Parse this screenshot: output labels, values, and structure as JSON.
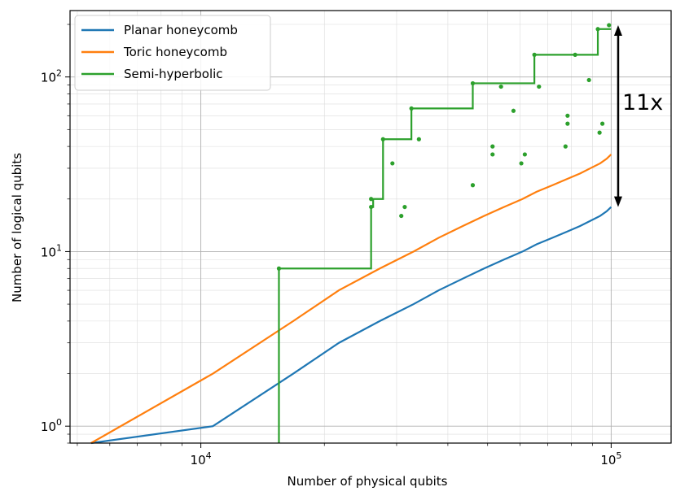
{
  "chart_data": {
    "type": "line",
    "xscale": "log",
    "yscale": "log",
    "xlim": [
      4800,
      140000
    ],
    "ylim": [
      0.8,
      240
    ],
    "grid": "major-and-minor",
    "xlabel": "Number of physical qubits",
    "ylabel": "Number of logical qubits",
    "xticks": [
      {
        "value": 10000,
        "base": "10",
        "exp": "4"
      },
      {
        "value": 100000,
        "base": "10",
        "exp": "5"
      }
    ],
    "yticks": [
      {
        "value": 1,
        "base": "10",
        "exp": "0"
      },
      {
        "value": 10,
        "base": "10",
        "exp": "1"
      },
      {
        "value": 100,
        "base": "10",
        "exp": "2"
      }
    ],
    "legend_position": "top-left",
    "series": [
      {
        "name": "Planar honeycomb",
        "color": "#1f77b4",
        "style": "step",
        "x": [
          5400,
          10700,
          10700,
          16800,
          16800,
          21700,
          21700,
          27300,
          27300,
          33000,
          33000,
          38000,
          38000,
          43500,
          43500,
          49000,
          49000,
          54800,
          54800,
          60800,
          60800,
          65800,
          65800,
          72000,
          72000,
          78000,
          78000,
          84000,
          84000,
          89000,
          89000,
          94000,
          94000,
          97500,
          97500,
          100000
        ],
        "y": [
          0.8,
          1,
          1,
          2,
          2,
          3,
          3,
          4,
          4,
          5,
          5,
          6,
          6,
          7,
          7,
          8,
          8,
          9,
          9,
          10,
          10,
          11,
          11,
          12,
          12,
          13,
          13,
          14,
          14,
          15,
          15,
          16,
          16,
          17,
          17,
          18
        ]
      },
      {
        "name": "Toric honeycomb",
        "color": "#ff7f0e",
        "style": "step",
        "x": [
          5400,
          10700,
          10700,
          16800,
          16800,
          21700,
          21700,
          27300,
          27300,
          33000,
          33000,
          38000,
          38000,
          43500,
          43500,
          49000,
          49000,
          54800,
          54800,
          60800,
          60800,
          65800,
          65800,
          72000,
          72000,
          78000,
          78000,
          84000,
          84000,
          89000,
          89000,
          94000,
          94000,
          97500,
          97500,
          100000
        ],
        "y": [
          0.8,
          2,
          2,
          4,
          4,
          6,
          6,
          8,
          8,
          10,
          10,
          12,
          12,
          14,
          14,
          16,
          16,
          18,
          18,
          20,
          20,
          22,
          22,
          24,
          24,
          26,
          26,
          28,
          28,
          30,
          30,
          32,
          32,
          34,
          34,
          36
        ]
      },
      {
        "name": "Semi-hyperbolic",
        "color": "#2ca02c",
        "style": "step-with-points",
        "x": [
          15500,
          15500,
          26000,
          26000,
          26300,
          26300,
          27800,
          27800,
          32600,
          32600,
          46000,
          46000,
          65000,
          65000,
          92800,
          92800,
          100000
        ],
        "y": [
          0.8,
          8,
          8,
          18,
          18,
          20,
          20,
          44,
          44,
          66,
          66,
          92,
          92,
          134,
          134,
          188,
          188
        ],
        "points": [
          {
            "x": 15500,
            "y": 8
          },
          {
            "x": 26000,
            "y": 18
          },
          {
            "x": 26000,
            "y": 20
          },
          {
            "x": 27800,
            "y": 44
          },
          {
            "x": 29300,
            "y": 32
          },
          {
            "x": 30800,
            "y": 16
          },
          {
            "x": 31400,
            "y": 18
          },
          {
            "x": 32600,
            "y": 66
          },
          {
            "x": 34000,
            "y": 44
          },
          {
            "x": 46000,
            "y": 24
          },
          {
            "x": 46000,
            "y": 92
          },
          {
            "x": 51400,
            "y": 36
          },
          {
            "x": 51400,
            "y": 40
          },
          {
            "x": 53900,
            "y": 88
          },
          {
            "x": 57800,
            "y": 64
          },
          {
            "x": 60400,
            "y": 32
          },
          {
            "x": 61600,
            "y": 36
          },
          {
            "x": 65000,
            "y": 134
          },
          {
            "x": 66700,
            "y": 88
          },
          {
            "x": 77400,
            "y": 40
          },
          {
            "x": 78300,
            "y": 54
          },
          {
            "x": 78300,
            "y": 60
          },
          {
            "x": 81700,
            "y": 134
          },
          {
            "x": 88300,
            "y": 96
          },
          {
            "x": 92800,
            "y": 188
          },
          {
            "x": 93700,
            "y": 48
          },
          {
            "x": 95200,
            "y": 54
          },
          {
            "x": 98800,
            "y": 198
          }
        ]
      }
    ],
    "annotation": {
      "text": "11x",
      "x": 104000,
      "y_from": 18,
      "y_to": 198
    }
  }
}
